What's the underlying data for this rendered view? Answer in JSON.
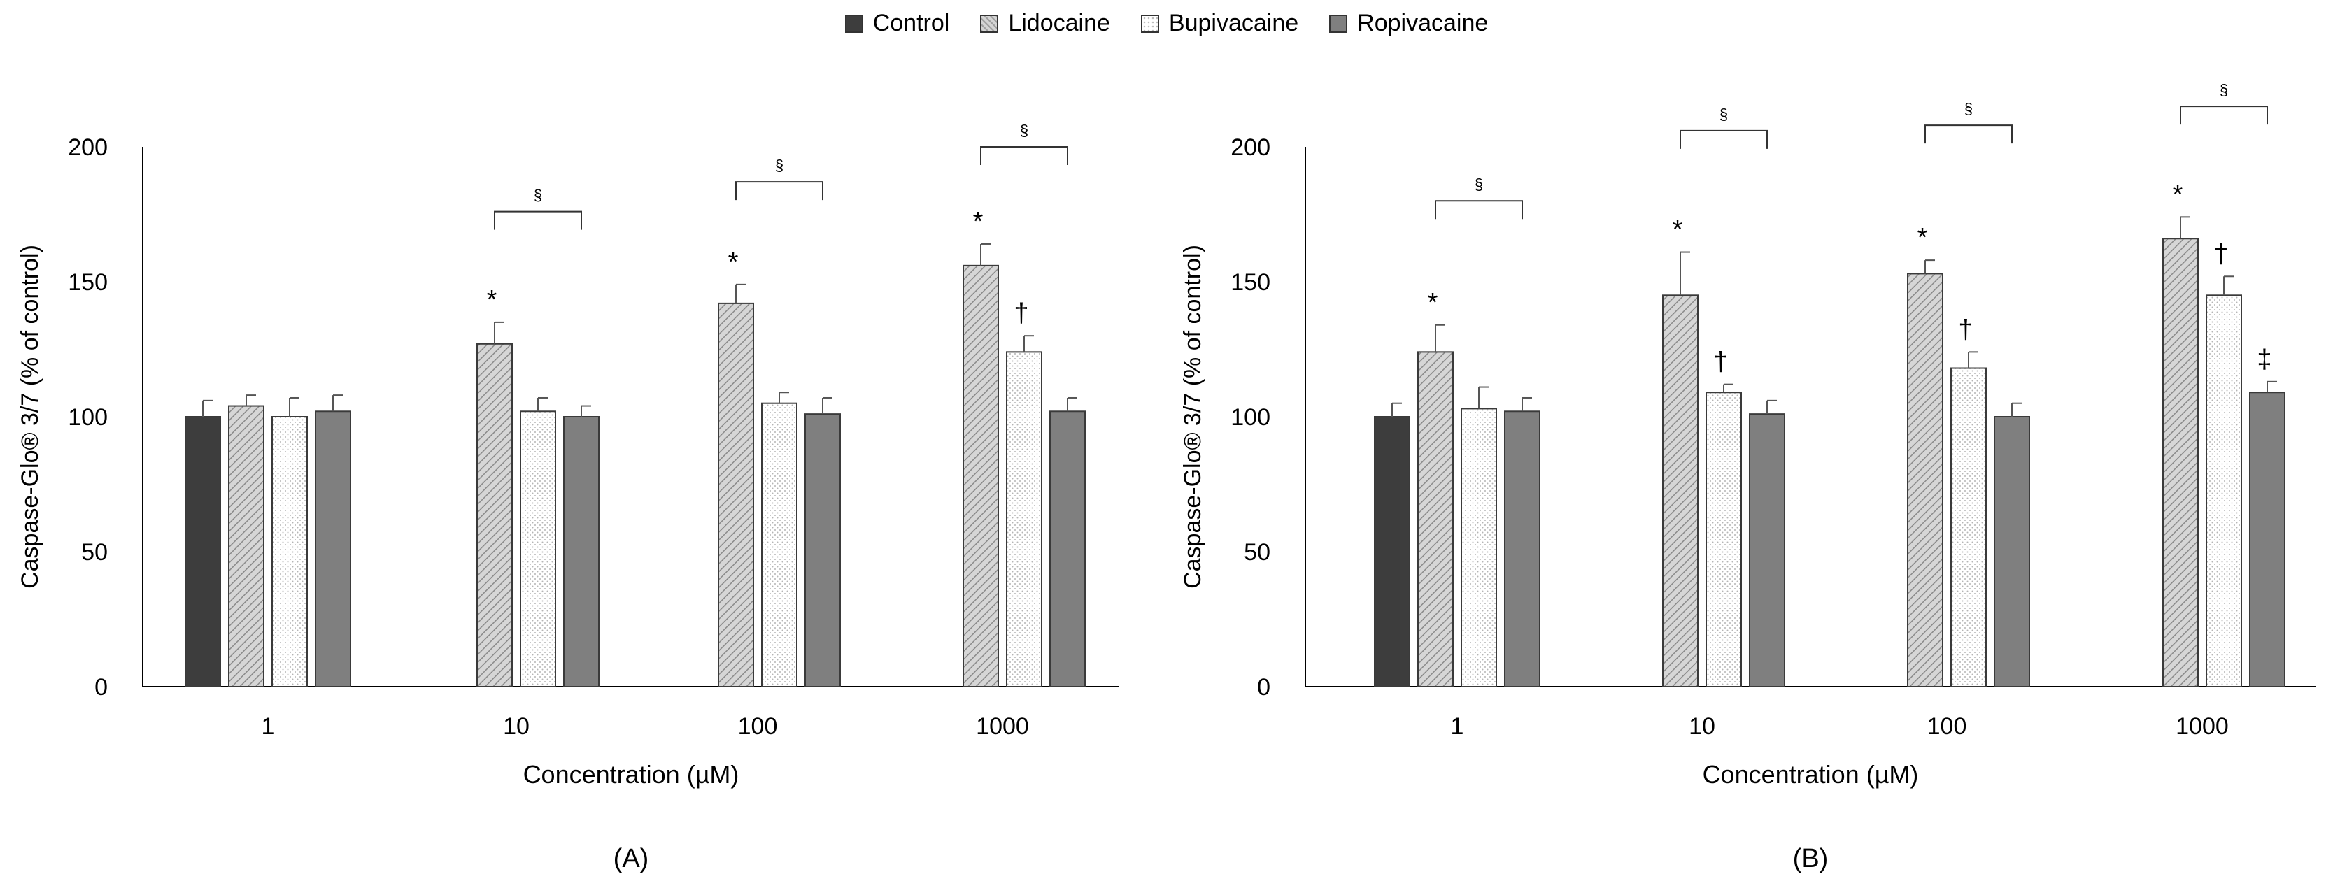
{
  "colors": {
    "control": "#3d3d3d",
    "lidocaine": "#c4c4c4",
    "bupivacaine": "#ffffff",
    "ropivacaine": "#7f7f7f",
    "axis": "#000000",
    "errorbar": "#555555"
  },
  "legend": {
    "control": "Control",
    "lidocaine": "Lidocaine",
    "bupivacaine": "Bupivacaine",
    "ropivacaine": "Ropivacaine"
  },
  "chart_data": [
    {
      "type": "bar",
      "panel_label": "(A)",
      "xlabel": "Concentration (µM)",
      "ylabel": "Caspase-Glo® 3/7 (% of control)",
      "ylim": [
        0,
        200
      ],
      "yticks": [
        "0",
        "50",
        "100",
        "150",
        "200"
      ],
      "categories": [
        "1",
        "10",
        "100",
        "1000"
      ],
      "series": [
        {
          "name": "Control",
          "key": "control",
          "values": [
            100,
            null,
            null,
            null
          ],
          "errors": [
            6,
            null,
            null,
            null
          ],
          "marks": [
            "",
            null,
            null,
            null
          ]
        },
        {
          "name": "Lidocaine",
          "key": "lidocaine",
          "values": [
            104,
            127,
            142,
            156
          ],
          "errors": [
            4,
            8,
            7,
            8
          ],
          "marks": [
            "",
            "*",
            "*",
            "*"
          ]
        },
        {
          "name": "Bupivacaine",
          "key": "bupivacaine",
          "values": [
            100,
            102,
            105,
            124
          ],
          "errors": [
            7,
            5,
            4,
            6
          ],
          "marks": [
            "",
            "",
            "",
            "†"
          ]
        },
        {
          "name": "Ropivacaine",
          "key": "ropivacaine",
          "values": [
            102,
            100,
            101,
            102
          ],
          "errors": [
            6,
            4,
            6,
            5
          ],
          "marks": [
            "",
            "",
            "",
            ""
          ]
        }
      ],
      "brackets": [
        {
          "category": "10",
          "label": "§",
          "y": 176
        },
        {
          "category": "100",
          "label": "§",
          "y": 187
        },
        {
          "category": "1000",
          "label": "§",
          "y": 200
        }
      ]
    },
    {
      "type": "bar",
      "panel_label": "(B)",
      "xlabel": "Concentration (µM)",
      "ylabel": "Caspase-Glo® 3/7 (% of control)",
      "ylim": [
        0,
        200
      ],
      "yticks": [
        "0",
        "50",
        "100",
        "150",
        "200"
      ],
      "categories": [
        "1",
        "10",
        "100",
        "1000"
      ],
      "series": [
        {
          "name": "Control",
          "key": "control",
          "values": [
            100,
            null,
            null,
            null
          ],
          "errors": [
            5,
            null,
            null,
            null
          ],
          "marks": [
            "",
            null,
            null,
            null
          ]
        },
        {
          "name": "Lidocaine",
          "key": "lidocaine",
          "values": [
            124,
            145,
            153,
            166
          ],
          "errors": [
            10,
            16,
            5,
            8
          ],
          "marks": [
            "*",
            "*",
            "*",
            "*"
          ]
        },
        {
          "name": "Bupivacaine",
          "key": "bupivacaine",
          "values": [
            103,
            109,
            118,
            145
          ],
          "errors": [
            8,
            3,
            6,
            7
          ],
          "marks": [
            "",
            "†",
            "†",
            "†"
          ]
        },
        {
          "name": "Ropivacaine",
          "key": "ropivacaine",
          "values": [
            102,
            101,
            100,
            109
          ],
          "errors": [
            5,
            5,
            5,
            4
          ],
          "marks": [
            "",
            "",
            "",
            "‡"
          ]
        }
      ],
      "brackets": [
        {
          "category": "1",
          "label": "§",
          "y": 180
        },
        {
          "category": "10",
          "label": "§",
          "y": 206
        },
        {
          "category": "100",
          "label": "§",
          "y": 208
        },
        {
          "category": "1000",
          "label": "§",
          "y": 215
        }
      ]
    }
  ]
}
